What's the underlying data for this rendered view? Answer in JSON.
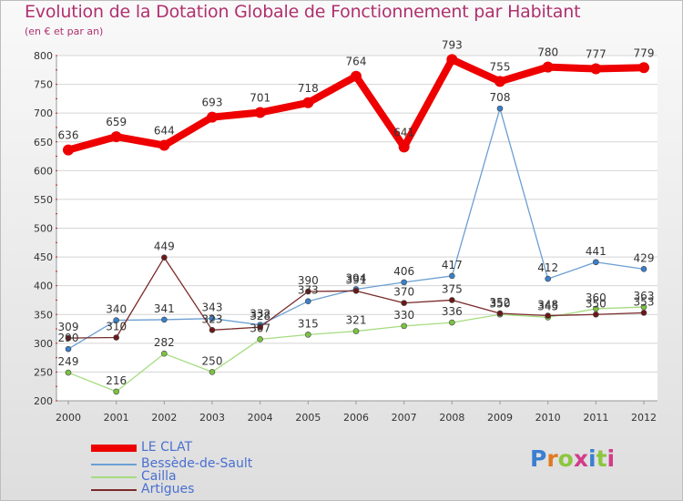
{
  "header": {
    "title": "Evolution de la Dotation Globale de Fonctionnement par Habitant",
    "subtitle": "(en € et par an)"
  },
  "logo": {
    "text": "Proxiti",
    "letter_colors": [
      "#3a7fd0",
      "#e07a20",
      "#8cc63f",
      "#d23c8a",
      "#3a7fd0",
      "#8cc63f",
      "#d23c8a"
    ]
  },
  "chart_data": {
    "type": "line",
    "x": [
      "2000",
      "2001",
      "2002",
      "2003",
      "2004",
      "2005",
      "2006",
      "2007",
      "2008",
      "2009",
      "2010",
      "2011",
      "2012"
    ],
    "ylim": [
      200,
      800
    ],
    "yticks": [
      "200",
      "250",
      "300",
      "350",
      "400",
      "450",
      "500",
      "550",
      "600",
      "650",
      "700",
      "750",
      "800"
    ],
    "grid": "horizontal",
    "legend": "bottom-left",
    "series": [
      {
        "name": "LE CLAT",
        "color": "#ee0000",
        "marker": "#ee0000",
        "values": [
          636,
          659,
          644,
          693,
          701,
          718,
          764,
          641,
          793,
          755,
          780,
          777,
          779
        ],
        "labels": [
          "636",
          "659",
          "644",
          "693",
          "701",
          "718",
          "764",
          "641",
          "793",
          "755",
          "780",
          "777",
          "779"
        ]
      },
      {
        "name": "Bessède-de-Sault",
        "color": "#6b9fd2",
        "marker": "#3a7fc8",
        "values": [
          290,
          340,
          341,
          343,
          332,
          373,
          394,
          406,
          417,
          708,
          412,
          441,
          429
        ],
        "labels": [
          "290",
          "340",
          "341",
          "343",
          "332",
          "373",
          "394",
          "406",
          "417",
          "708",
          "412",
          "441",
          "429"
        ]
      },
      {
        "name": "Cailla",
        "color": "#a5dc80",
        "marker": "#7cc242",
        "values": [
          249,
          216,
          282,
          250,
          307,
          315,
          321,
          330,
          336,
          350,
          345,
          360,
          363
        ],
        "labels": [
          "249",
          "216",
          "282",
          "250",
          "307",
          "315",
          "321",
          "330",
          "336",
          "350",
          "345",
          "360",
          "363"
        ]
      },
      {
        "name": "Artigues",
        "color": "#7a2a2a",
        "marker": "#6a1818",
        "values": [
          309,
          310,
          449,
          323,
          328,
          390,
          391,
          370,
          375,
          352,
          348,
          350,
          353
        ],
        "labels": [
          "309",
          "310",
          "449",
          "323",
          "328",
          "390",
          "391",
          "370",
          "375",
          "352",
          "348",
          "350",
          "353"
        ]
      }
    ]
  }
}
